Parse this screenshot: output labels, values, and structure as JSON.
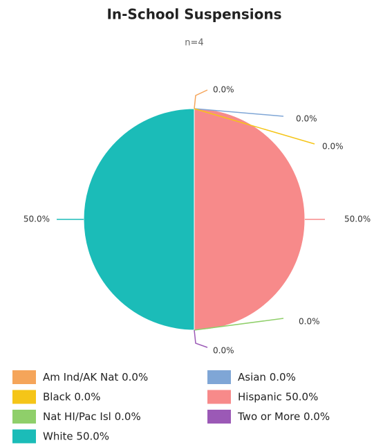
{
  "chart_data": {
    "type": "pie",
    "title": "In-School Suspensions",
    "subtitle": "n=4",
    "categories": [
      "Am Ind/AK Nat",
      "Asian",
      "Black",
      "Hispanic",
      "Nat HI/Pac Isl",
      "Two or More",
      "White"
    ],
    "values": [
      0,
      0,
      0,
      50,
      0,
      0,
      50
    ],
    "value_labels": [
      "0.0%",
      "0.0%",
      "0.0%",
      "50.0%",
      "0.0%",
      "0.0%",
      "50.0%"
    ],
    "colors": [
      "#f5a55a",
      "#7fa6d6",
      "#f5c518",
      "#f78a8a",
      "#8fcf6a",
      "#9b59b6",
      "#1bbcb8"
    ],
    "legend": "bottom"
  }
}
